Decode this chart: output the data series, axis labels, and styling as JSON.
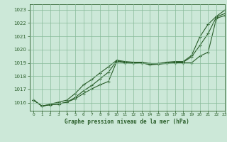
{
  "title": "Graphe pression niveau de la mer (hPa)",
  "bg_color": "#cce8d8",
  "grid_color": "#88bb99",
  "line_color": "#2a5e2a",
  "xlim": [
    -0.5,
    23
  ],
  "ylim": [
    1015.4,
    1023.4
  ],
  "yticks": [
    1016,
    1017,
    1018,
    1019,
    1020,
    1021,
    1022,
    1023
  ],
  "xticks": [
    0,
    1,
    2,
    3,
    4,
    5,
    6,
    7,
    8,
    9,
    10,
    11,
    12,
    13,
    14,
    15,
    16,
    17,
    18,
    19,
    20,
    21,
    22,
    23
  ],
  "lines": [
    [
      1016.2,
      1015.75,
      1015.85,
      1015.9,
      1016.05,
      1016.3,
      1016.7,
      1017.05,
      1017.35,
      1017.6,
      1019.1,
      1019.0,
      1018.95,
      1019.0,
      1018.85,
      1018.9,
      1018.95,
      1019.0,
      1019.0,
      1019.0,
      1019.5,
      1019.8,
      1022.35,
      1022.55
    ],
    [
      1016.2,
      1015.75,
      1015.85,
      1015.9,
      1016.05,
      1016.4,
      1016.9,
      1017.3,
      1017.8,
      1018.3,
      1019.15,
      1019.05,
      1019.0,
      1019.0,
      1018.9,
      1018.9,
      1019.0,
      1019.05,
      1019.05,
      1019.45,
      1020.3,
      1021.2,
      1022.45,
      1022.7
    ],
    [
      1016.2,
      1015.75,
      1015.9,
      1016.05,
      1016.2,
      1016.7,
      1017.35,
      1017.75,
      1018.25,
      1018.7,
      1019.2,
      1019.1,
      1019.05,
      1019.05,
      1018.95,
      1018.95,
      1019.05,
      1019.1,
      1019.1,
      1019.55,
      1020.95,
      1021.9,
      1022.5,
      1022.95
    ]
  ]
}
